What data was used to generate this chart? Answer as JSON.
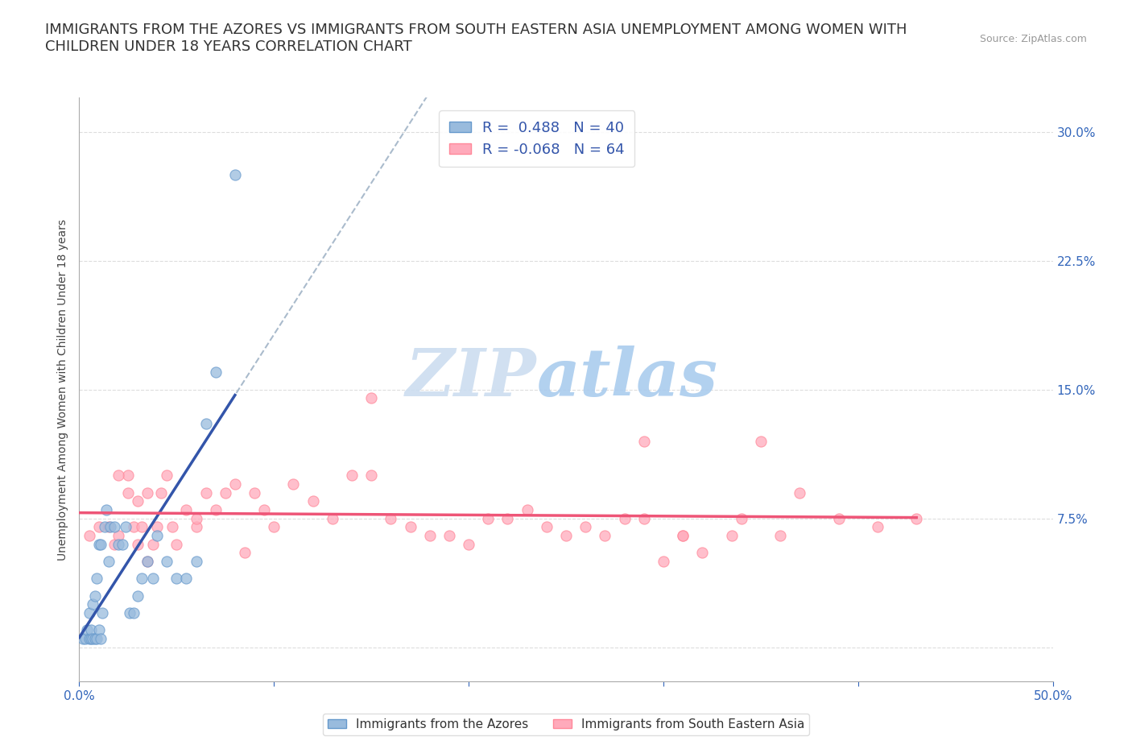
{
  "title": "IMMIGRANTS FROM THE AZORES VS IMMIGRANTS FROM SOUTH EASTERN ASIA UNEMPLOYMENT AMONG WOMEN WITH\nCHILDREN UNDER 18 YEARS CORRELATION CHART",
  "source_text": "Source: ZipAtlas.com",
  "ylabel_label": "Unemployment Among Women with Children Under 18 years",
  "y_ticks": [
    0.0,
    0.075,
    0.15,
    0.225,
    0.3
  ],
  "y_tick_labels": [
    "",
    "7.5%",
    "15.0%",
    "22.5%",
    "30.0%"
  ],
  "x_ticks": [
    0.0,
    0.1,
    0.2,
    0.3,
    0.4,
    0.5
  ],
  "x_tick_labels": [
    "0.0%",
    "",
    "",
    "",
    "",
    "50.0%"
  ],
  "xlim": [
    0.0,
    0.5
  ],
  "ylim": [
    -0.02,
    0.32
  ],
  "legend_r1": "R =  0.488   N = 40",
  "legend_r2": "R = -0.068   N = 64",
  "color_azores": "#99BBDD",
  "color_sea": "#FFAABB",
  "color_azores_edge": "#6699CC",
  "color_sea_edge": "#FF8899",
  "color_azores_line": "#3355AA",
  "color_sea_line": "#EE5577",
  "color_dashed": "#AABBCC",
  "legend_azores": "Immigrants from the Azores",
  "legend_sea": "Immigrants from South Eastern Asia",
  "azores_x": [
    0.002,
    0.003,
    0.004,
    0.005,
    0.005,
    0.006,
    0.006,
    0.007,
    0.007,
    0.008,
    0.008,
    0.009,
    0.009,
    0.01,
    0.01,
    0.011,
    0.011,
    0.012,
    0.013,
    0.014,
    0.015,
    0.016,
    0.018,
    0.02,
    0.022,
    0.024,
    0.026,
    0.028,
    0.03,
    0.032,
    0.035,
    0.038,
    0.04,
    0.045,
    0.05,
    0.055,
    0.06,
    0.065,
    0.07,
    0.08
  ],
  "azores_y": [
    0.005,
    0.005,
    0.01,
    0.005,
    0.02,
    0.005,
    0.01,
    0.005,
    0.025,
    0.005,
    0.03,
    0.04,
    0.005,
    0.01,
    0.06,
    0.06,
    0.005,
    0.02,
    0.07,
    0.08,
    0.05,
    0.07,
    0.07,
    0.06,
    0.06,
    0.07,
    0.02,
    0.02,
    0.03,
    0.04,
    0.05,
    0.04,
    0.065,
    0.05,
    0.04,
    0.04,
    0.05,
    0.13,
    0.16,
    0.275
  ],
  "sea_x": [
    0.005,
    0.01,
    0.015,
    0.018,
    0.02,
    0.025,
    0.028,
    0.03,
    0.032,
    0.035,
    0.038,
    0.04,
    0.042,
    0.045,
    0.048,
    0.05,
    0.055,
    0.06,
    0.065,
    0.07,
    0.075,
    0.08,
    0.085,
    0.09,
    0.095,
    0.1,
    0.11,
    0.12,
    0.13,
    0.14,
    0.15,
    0.16,
    0.17,
    0.18,
    0.19,
    0.2,
    0.21,
    0.22,
    0.23,
    0.24,
    0.25,
    0.26,
    0.27,
    0.28,
    0.29,
    0.3,
    0.31,
    0.32,
    0.34,
    0.35,
    0.36,
    0.37,
    0.39,
    0.41,
    0.43,
    0.29,
    0.31,
    0.335,
    0.15,
    0.02,
    0.025,
    0.03,
    0.035,
    0.06
  ],
  "sea_y": [
    0.065,
    0.07,
    0.07,
    0.06,
    0.065,
    0.1,
    0.07,
    0.06,
    0.07,
    0.05,
    0.06,
    0.07,
    0.09,
    0.1,
    0.07,
    0.06,
    0.08,
    0.07,
    0.09,
    0.08,
    0.09,
    0.095,
    0.055,
    0.09,
    0.08,
    0.07,
    0.095,
    0.085,
    0.075,
    0.1,
    0.1,
    0.075,
    0.07,
    0.065,
    0.065,
    0.06,
    0.075,
    0.075,
    0.08,
    0.07,
    0.065,
    0.07,
    0.065,
    0.075,
    0.075,
    0.05,
    0.065,
    0.055,
    0.075,
    0.12,
    0.065,
    0.09,
    0.075,
    0.07,
    0.075,
    0.12,
    0.065,
    0.065,
    0.145,
    0.1,
    0.09,
    0.085,
    0.09,
    0.075
  ],
  "background_color": "#FFFFFF",
  "plot_bg_color": "#FFFFFF",
  "grid_color": "#DDDDDD",
  "title_fontsize": 13,
  "axis_label_fontsize": 10,
  "tick_fontsize": 11,
  "legend_fontsize": 13
}
